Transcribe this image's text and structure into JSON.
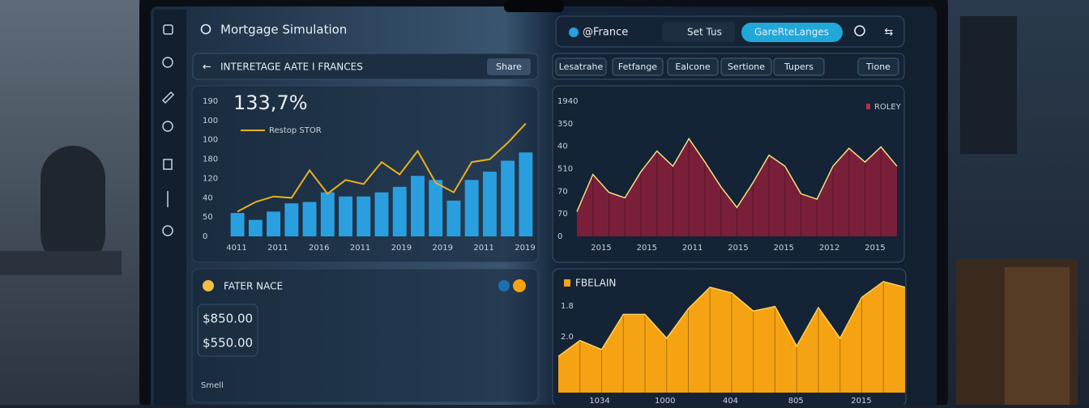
{
  "left": {
    "search": "Mortgage Simulation",
    "header": "INTERETAGE AATE I FRANCES",
    "share": "Share",
    "rate_chart": {
      "type": "bar_line",
      "headline": "133,7%",
      "legend": "Restop STOR",
      "ytick_labels": [
        "190",
        "100",
        "100",
        "180",
        "120",
        "40",
        "50",
        "0"
      ],
      "xtick_labels": [
        "4011",
        "2011",
        "2016",
        "2011",
        "2019",
        "2019",
        "2011",
        "2019"
      ],
      "ylim": [
        0,
        100
      ],
      "bar_color": "#2a9fe0",
      "line_color": "#e8b020",
      "bars": [
        17,
        12,
        18,
        24,
        25,
        32,
        29,
        29,
        32,
        36,
        44,
        41,
        26,
        41,
        47,
        55,
        61
      ],
      "line": [
        18,
        25,
        29,
        28,
        48,
        31,
        41,
        38,
        54,
        45,
        62,
        39,
        32,
        54,
        56,
        68,
        82
      ]
    },
    "rate_panel": {
      "title": "FATER NACE",
      "amounts": [
        "$850.00",
        "$550.00"
      ],
      "footer": "Smell"
    }
  },
  "right": {
    "location": "@France",
    "settings": "Set Tus",
    "button": "GareRteLanges",
    "tabs": [
      "Lesatrahe",
      "Fetfange",
      "Ealcone",
      "Sertione",
      "Tupers"
    ],
    "tab_right": "Tione",
    "area_chart": {
      "type": "area",
      "legend": "ROLEY",
      "color": "#7a1f3a",
      "line_color": "#f0e080",
      "ytick_labels": [
        "1940",
        "350",
        "40",
        "510",
        "70",
        "70",
        "0"
      ],
      "xtick_labels": [
        "2015",
        "2015",
        "2011",
        "2015",
        "2015",
        "2012",
        "2015"
      ],
      "ylim": [
        0,
        100
      ],
      "values": [
        18,
        45,
        32,
        28,
        47,
        62,
        51,
        71,
        54,
        36,
        21,
        39,
        59,
        51,
        31,
        27,
        51,
        64,
        54,
        65,
        51
      ]
    },
    "yellow_chart": {
      "type": "area",
      "legend": "FBELAIN",
      "color": "#f5a312",
      "line_color": "#ffd060",
      "ytick_labels": [
        "1.8",
        "2.0"
      ],
      "xtick_labels": [
        "1034",
        "1000",
        "404",
        "805",
        "2015"
      ],
      "ylim": [
        0,
        100
      ],
      "values": [
        32,
        46,
        38,
        69,
        69,
        48,
        74,
        93,
        88,
        72,
        76,
        41,
        75,
        48,
        84,
        98,
        93
      ]
    }
  }
}
